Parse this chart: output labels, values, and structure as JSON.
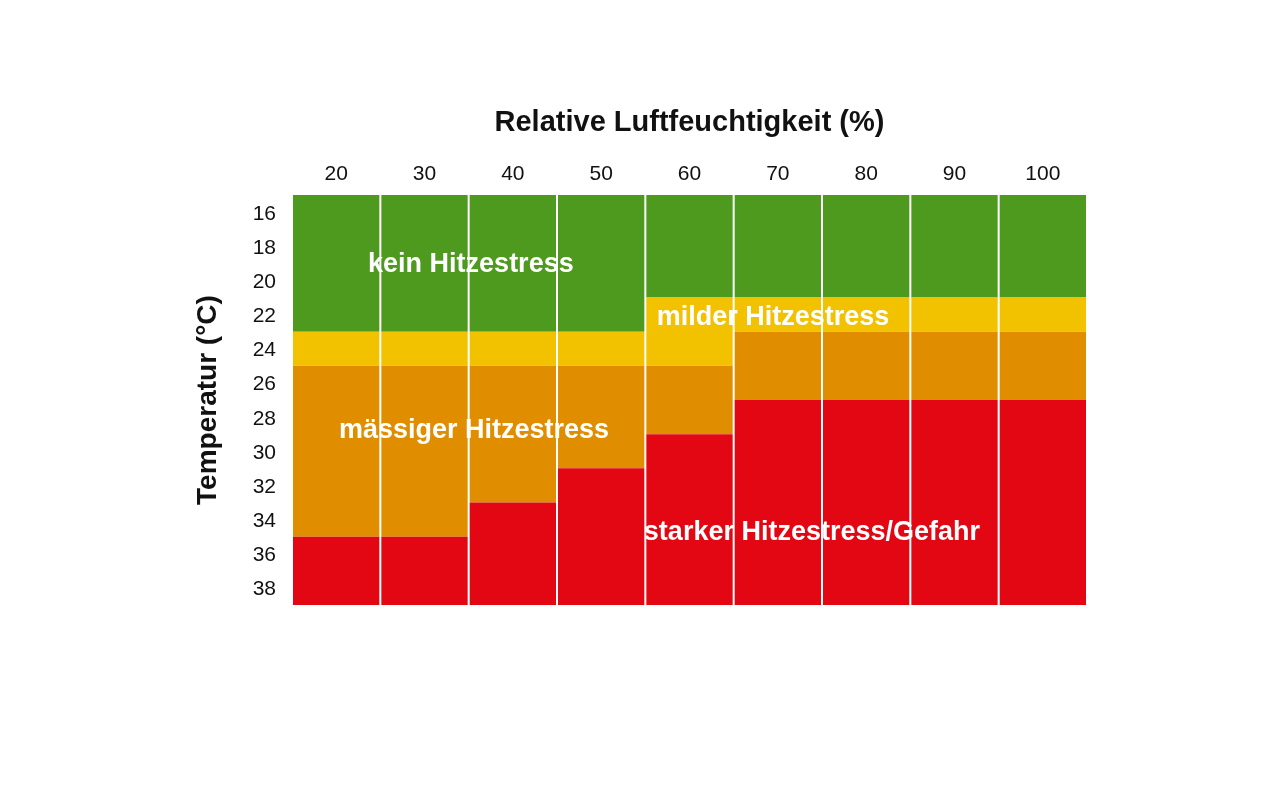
{
  "chart_data": {
    "type": "bar",
    "xlabel": "Relative Luftfeuchtigkeit (%)",
    "ylabel": "Temperatur (°C)",
    "categories": [
      "20",
      "30",
      "40",
      "50",
      "60",
      "70",
      "80",
      "90",
      "100"
    ],
    "ylim": [
      39,
      15
    ],
    "yticks": [
      16,
      18,
      20,
      22,
      24,
      26,
      28,
      30,
      32,
      34,
      36,
      38
    ],
    "series": [
      {
        "name": "kein Hitzestress",
        "color": "#4e9a1f",
        "base": [
          15,
          15,
          15,
          15,
          15,
          15,
          15,
          15,
          15
        ],
        "values": [
          8,
          8,
          8,
          8,
          6,
          6,
          6,
          6,
          6
        ]
      },
      {
        "name": "milder Hitzestress",
        "color": "#f2c100",
        "base": [
          23,
          23,
          23,
          23,
          21,
          21,
          21,
          21,
          21
        ],
        "values": [
          2,
          2,
          2,
          2,
          4,
          2,
          2,
          2,
          2
        ]
      },
      {
        "name": "mässiger Hitzestress",
        "color": "#e08e00",
        "base": [
          25,
          25,
          25,
          25,
          25,
          23,
          23,
          23,
          23
        ],
        "values": [
          10,
          10,
          8,
          6,
          4,
          4,
          4,
          4,
          4
        ]
      },
      {
        "name": "starker Hitzestress/Gefahr",
        "color": "#e30613",
        "base": [
          35,
          35,
          33,
          31,
          29,
          27,
          27,
          27,
          27
        ],
        "values": [
          4,
          4,
          6,
          8,
          10,
          12,
          12,
          12,
          12
        ]
      }
    ]
  }
}
